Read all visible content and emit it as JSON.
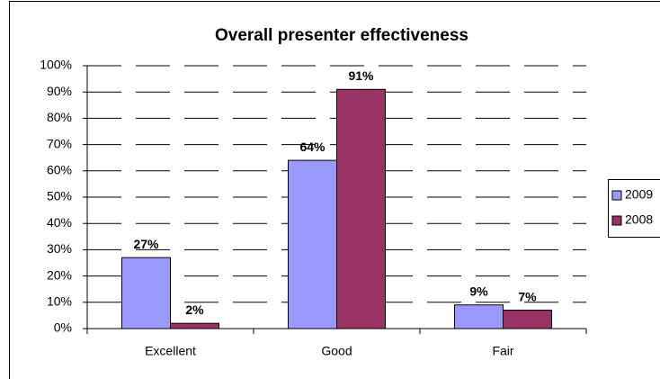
{
  "chart_data": {
    "type": "bar",
    "title": "Overall presenter effectiveness",
    "categories": [
      "Excellent",
      "Good",
      "Fair"
    ],
    "series": [
      {
        "name": "2009",
        "color": "#9999ff",
        "values": [
          27,
          64,
          9
        ],
        "value_labels": [
          "27%",
          "64%",
          "9%"
        ]
      },
      {
        "name": "2008",
        "color": "#993366",
        "values": [
          2,
          91,
          7
        ],
        "value_labels": [
          "2%",
          "91%",
          "7%"
        ]
      }
    ],
    "ylim": [
      0,
      100
    ],
    "yticks": [
      {
        "value": 0,
        "label": "0%"
      },
      {
        "value": 10,
        "label": "10%"
      },
      {
        "value": 20,
        "label": "20%"
      },
      {
        "value": 30,
        "label": "30%"
      },
      {
        "value": 40,
        "label": "40%"
      },
      {
        "value": 50,
        "label": "50%"
      },
      {
        "value": 60,
        "label": "60%"
      },
      {
        "value": 70,
        "label": "70%"
      },
      {
        "value": 80,
        "label": "80%"
      },
      {
        "value": 90,
        "label": "90%"
      },
      {
        "value": 100,
        "label": "100%"
      }
    ],
    "grid": true,
    "legend": "right"
  }
}
